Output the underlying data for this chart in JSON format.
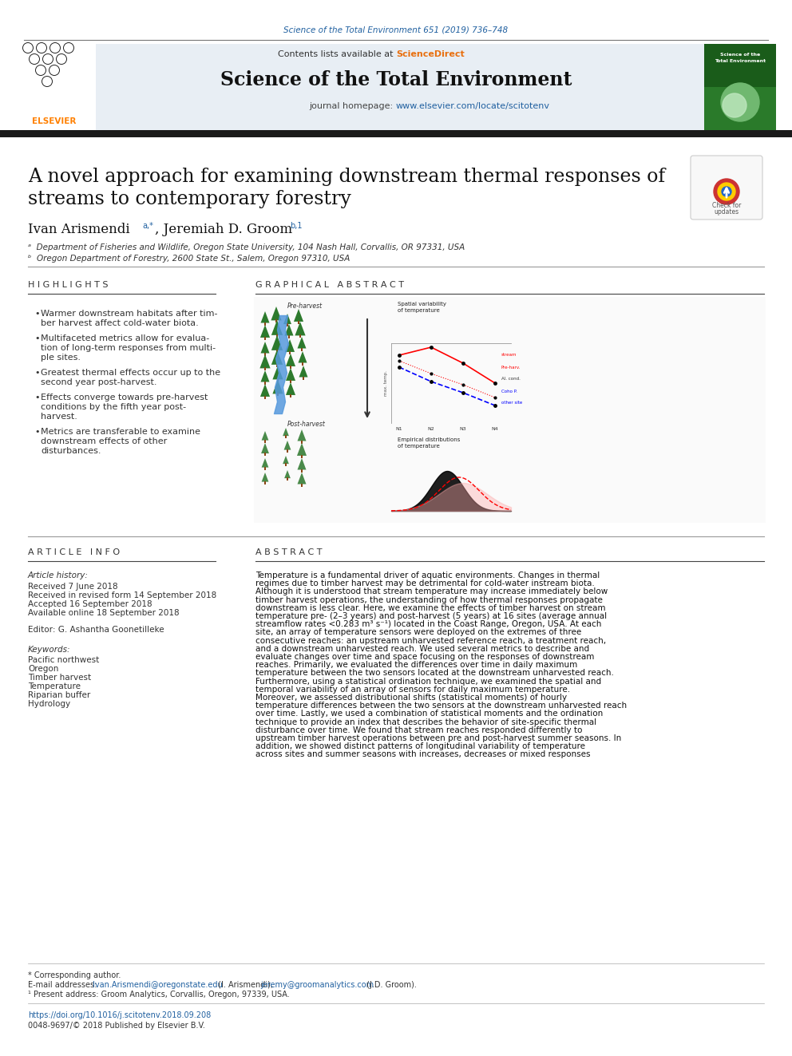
{
  "fig_width": 9.92,
  "fig_height": 13.23,
  "dpi": 100,
  "bg_color": "#ffffff",
  "journal_ref": "Science of the Total Environment 651 (2019) 736–748",
  "journal_ref_color": "#2060a0",
  "journal_ref_fontsize": 7.5,
  "header_bg": "#e8eef4",
  "header_contents_text": "Contents lists available at ",
  "header_sciencedirect": "ScienceDirect",
  "header_sciencedirect_color": "#e87010",
  "header_journal_name": "Science of the Total Environment",
  "header_homepage_text": "journal homepage: ",
  "header_homepage_url": "www.elsevier.com/locate/scitotenv",
  "header_homepage_url_color": "#2060a0",
  "thick_bar_color": "#1a1a1a",
  "article_title": "A novel approach for examining downstream thermal responses of\nstreams to contemporary forestry",
  "article_title_fontsize": 17,
  "authors_fontsize": 12,
  "affil_a": "ᵃ  Department of Fisheries and Wildlife, Oregon State University, 104 Nash Hall, Corvallis, OR 97331, USA",
  "affil_b": "ᵇ  Oregon Department of Forestry, 2600 State St., Salem, Oregon 97310, USA",
  "affil_fontsize": 7.5,
  "highlights_title": "H I G H L I G H T S",
  "highlights_title_fontsize": 8,
  "highlights": [
    "Warmer downstream habitats after tim-\nber harvest affect cold-water biota.",
    "Multifaceted metrics allow for evalua-\ntion of long-term responses from multi-\nple sites.",
    "Greatest thermal effects occur up to the\nsecond year post-harvest.",
    "Effects converge towards pre-harvest\nconditions by the fifth year post-\nharvest.",
    "Metrics are transferable to examine\ndownstream effects of other\ndisturbances."
  ],
  "highlights_fontsize": 8,
  "graphical_title": "G R A P H I C A L   A B S T R A C T",
  "graphical_title_fontsize": 8,
  "article_info_title": "A R T I C L E   I N F O",
  "article_info_title_fontsize": 8,
  "article_history_label": "Article history:",
  "received_label": "Received 7 June 2018",
  "revised_label": "Received in revised form 14 September 2018",
  "accepted_label": "Accepted 16 September 2018",
  "available_label": "Available online 18 September 2018",
  "editor_label": "Editor: G. Ashantha Goonetilleke",
  "keywords_label": "Keywords:",
  "keywords": [
    "Pacific northwest",
    "Oregon",
    "Timber harvest",
    "Temperature",
    "Riparian buffer",
    "Hydrology"
  ],
  "info_fontsize": 7.5,
  "abstract_title": "A B S T R A C T",
  "abstract_title_fontsize": 8,
  "abstract_text": "Temperature is a fundamental driver of aquatic environments. Changes in thermal regimes due to timber harvest may be detrimental for cold-water instream biota. Although it is understood that stream temperature may increase immediately below timber harvest operations, the understanding of how thermal responses propagate downstream is less clear. Here, we examine the effects of timber harvest on stream temperature pre- (2–3 years) and post-harvest (5 years) at 16 sites (average annual streamflow rates <0.283 m³ s⁻¹) located in the Coast Range, Oregon, USA. At each site, an array of temperature sensors were deployed on the extremes of three consecutive reaches: an upstream unharvested reference reach, a treatment reach, and a downstream unharvested reach. We used several metrics to describe and evaluate changes over time and space focusing on the responses of downstream reaches. Primarily, we evaluated the differences over time in daily maximum temperature between the two sensors located at the downstream unharvested reach. Furthermore, using a statistical ordination technique, we examined the spatial and temporal variability of an array of sensors for daily maximum temperature. Moreover, we assessed distributional shifts (statistical moments) of hourly temperature differences between the two sensors at the downstream unharvested reach over time. Lastly, we used a combination of statistical moments and the ordination technique to provide an index that describes the behavior of site-specific thermal disturbance over time. We found that stream reaches responded differently to upstream timber harvest operations between pre and post-harvest summer seasons. In addition, we showed distinct patterns of longitudinal variability of temperature across sites and summer seasons with increases, decreases or mixed responses",
  "abstract_fontsize": 7.5,
  "footer_corresponding": "* Corresponding author.",
  "footer_note": "¹ Present address: Groom Analytics, Corvallis, Oregon, 97339, USA.",
  "footer_doi": "https://doi.org/10.1016/j.scitotenv.2018.09.208",
  "footer_issn": "0048-9697/© 2018 Published by Elsevier B.V.",
  "footer_fontsize": 7,
  "footer_doi_color": "#2060a0",
  "footer_email_color": "#2060a0"
}
